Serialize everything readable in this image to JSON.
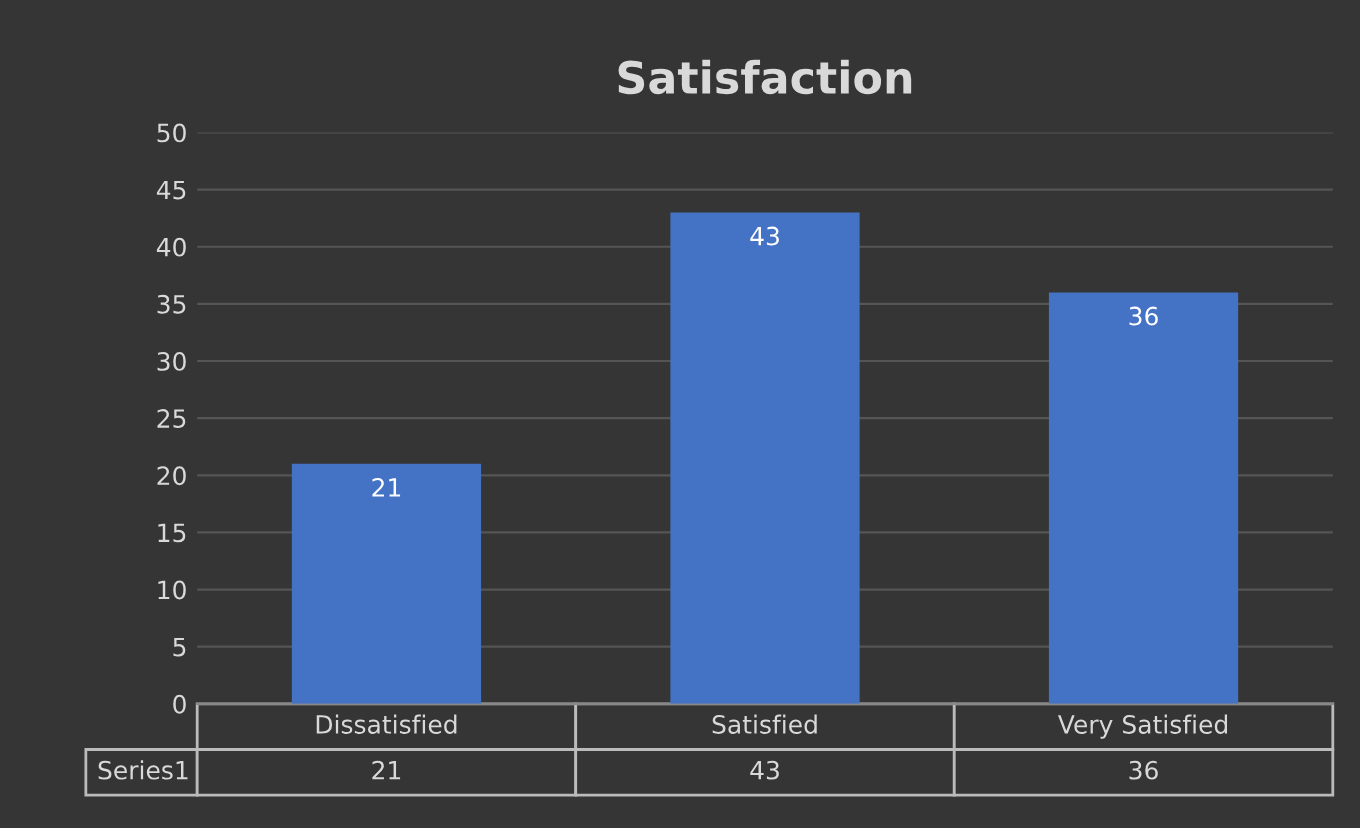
{
  "chart_data": {
    "type": "bar",
    "title": "Satisfaction",
    "categories": [
      "Dissatisfied",
      "Satisfied",
      "Very Satisfied"
    ],
    "series": [
      {
        "name": "Series1",
        "color": "#4472c4",
        "values": [
          21,
          43,
          36
        ],
        "value_labels": [
          "21",
          "43",
          "36"
        ]
      }
    ],
    "ylim": [
      0,
      50
    ],
    "yticks": [
      0,
      5,
      10,
      15,
      20,
      25,
      30,
      35,
      40,
      45,
      50
    ],
    "grid": "y",
    "legend": false,
    "annotations": [
      "21",
      "43",
      "36"
    ]
  }
}
